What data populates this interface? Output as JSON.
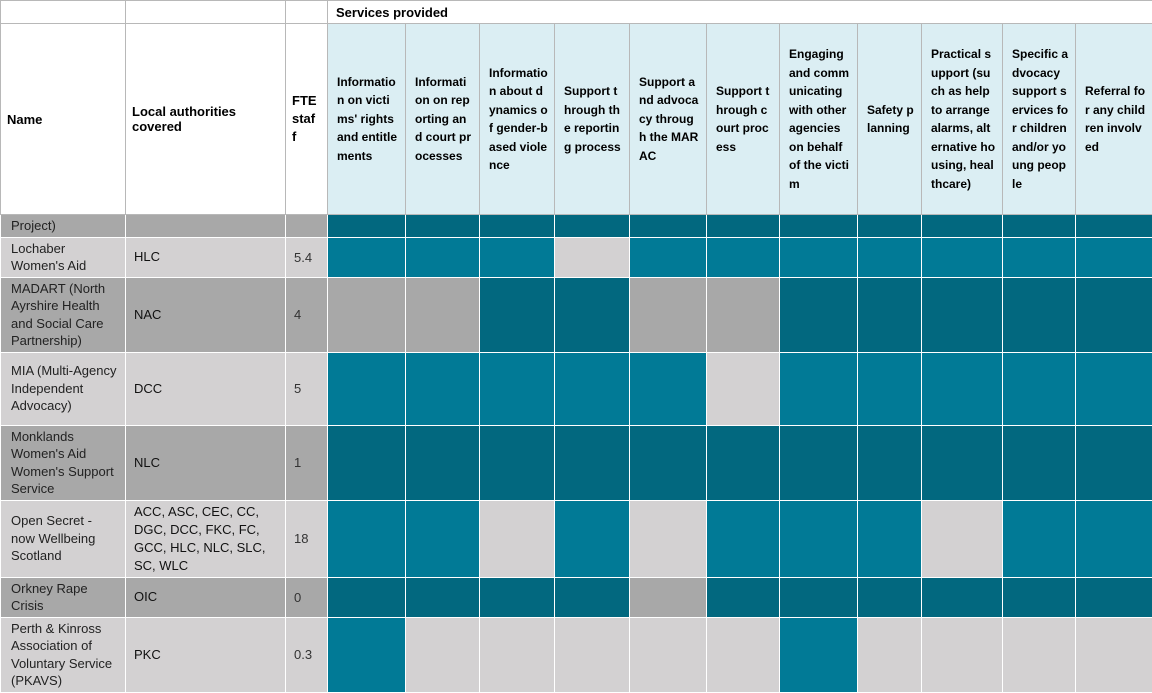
{
  "header": {
    "services_provided": "Services provided",
    "name": "Name",
    "local_authorities": "Local authorities covered",
    "fte": "FTE staff",
    "services": [
      "Information on victims' rights and entitlements",
      "Information on reporting and court processes",
      "Information about dynamics of gender-based violence",
      "Support through the reporting process",
      "Support and advocacy through the MARAC",
      "Support through court process",
      "Engaging and communicating with other agencies on behalf of the victim",
      "Safety planning",
      "Practical support (such as help to arrange alarms, alternative housing, healthcare)",
      "Specific advocacy support services for children and/or young people",
      "Referral for any children involved"
    ]
  },
  "rows": [
    {
      "name": "Project)",
      "la": "",
      "fte": "",
      "cells": [
        "D",
        "D",
        "D",
        "D",
        "D",
        "D",
        "D",
        "D",
        "D",
        "D",
        "D"
      ]
    },
    {
      "name": "Lochaber Women's Aid",
      "la": "HLC",
      "fte": "5.4",
      "cells": [
        "B",
        "B",
        "B",
        "L",
        "B",
        "B",
        "B",
        "B",
        "B",
        "B",
        "B"
      ]
    },
    {
      "name": "MADART (North Ayrshire Health and Social Care Partnership)",
      "la": "NAC",
      "fte": "4",
      "cells": [
        "G",
        "G",
        "D",
        "D",
        "G",
        "G",
        "D",
        "D",
        "D",
        "D",
        "D"
      ]
    },
    {
      "name": "MIA (Multi-Agency Independent Advocacy)",
      "la": "DCC",
      "fte": "5",
      "cells": [
        "B",
        "B",
        "B",
        "B",
        "B",
        "L",
        "B",
        "B",
        "B",
        "B",
        "B"
      ]
    },
    {
      "name": "Monklands Women's Aid Women's Support Service",
      "la": "NLC",
      "fte": "1",
      "cells": [
        "D",
        "D",
        "D",
        "D",
        "D",
        "D",
        "D",
        "D",
        "D",
        "D",
        "D"
      ]
    },
    {
      "name": "Open Secret - now Wellbeing Scotland",
      "la": "ACC, ASC, CEC, CC, DGC, DCC, FKC, FC, GCC, HLC, NLC, SLC, SC, WLC",
      "fte": "18",
      "cells": [
        "B",
        "B",
        "L",
        "B",
        "L",
        "B",
        "B",
        "B",
        "L",
        "B",
        "B"
      ]
    },
    {
      "name": "Orkney Rape Crisis",
      "la": "OIC",
      "fte": "0",
      "cells": [
        "D",
        "D",
        "D",
        "D",
        "G",
        "D",
        "D",
        "D",
        "D",
        "D",
        "D"
      ]
    },
    {
      "name": "Perth & Kinross Association of Voluntary Service (PKAVS)",
      "la": "PKC",
      "fte": "0.3",
      "cells": [
        "B",
        "L",
        "L",
        "L",
        "L",
        "L",
        "B",
        "L",
        "L",
        "L",
        "L"
      ]
    }
  ],
  "colors": {
    "D": "#02687f",
    "B": "#017a96",
    "L": "#d3d1d2",
    "G": "#a8a8a8",
    "header_bg": "#dbeef3"
  }
}
